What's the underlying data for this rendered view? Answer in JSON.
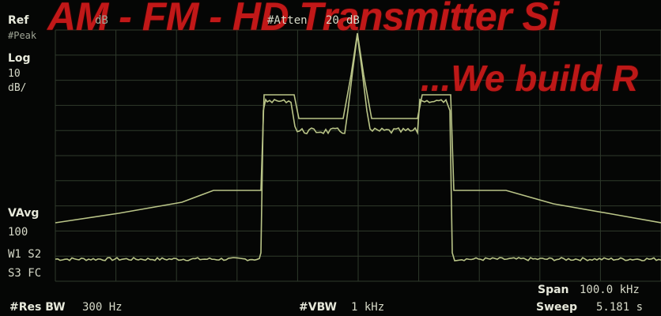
{
  "overlay": {
    "title": "AM - FM - HD Transmitter Si",
    "subtitle": "...We build R"
  },
  "left_panel": {
    "ref": "Ref",
    "ref_unit": "dB",
    "peak": "#Peak",
    "scale_type": "Log",
    "scale_value": "10",
    "scale_unit": "dB/",
    "vavg": "VAvg",
    "vavg_value": "100",
    "w1s2": "W1 S2",
    "s3fc": "S3 FC"
  },
  "top_center": {
    "atten_label": "#Atten",
    "atten_value": "20",
    "atten_unit": "dB"
  },
  "bottom": {
    "res_bw_label": "#Res BW",
    "res_bw_value": "300 Hz",
    "vbw_label": "#VBW",
    "vbw_value": "1 kHz",
    "span_label": "Span",
    "span_value": "100.0 kHz",
    "sweep_label": "Sweep",
    "sweep_value": "5.181 s"
  },
  "colors": {
    "background": "#050605",
    "graticule": "#2f3a2b",
    "trace": "#b9c487",
    "overlay_text": "#d21a1a"
  }
}
